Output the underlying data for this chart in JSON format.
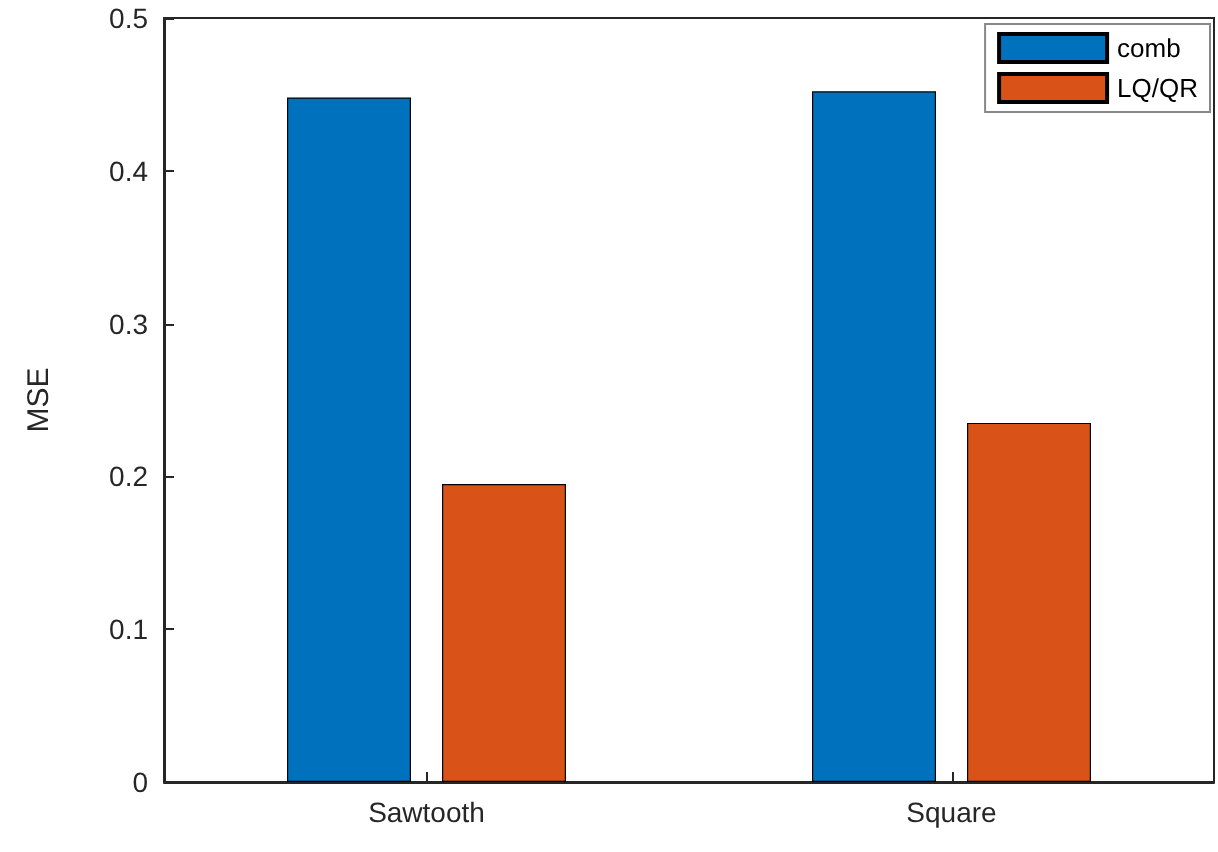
{
  "chart_data": {
    "type": "bar",
    "ylabel": "MSE",
    "categories": [
      "Sawtooth",
      "Square"
    ],
    "series": [
      {
        "name": "comb",
        "color": "#0072bd",
        "values": [
          0.448,
          0.452
        ]
      },
      {
        "name": "LQ/QR",
        "color": "#d95319",
        "values": [
          0.195,
          0.235
        ]
      }
    ],
    "ylim": [
      0,
      0.5
    ],
    "yticks": [
      0,
      0.1,
      0.2,
      0.3,
      0.4,
      0.5
    ],
    "grid": false,
    "legend": "top right"
  }
}
